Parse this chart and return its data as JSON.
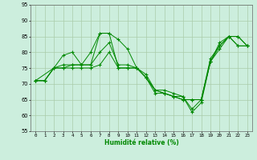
{
  "xlabel": "Humidité relative (%)",
  "xlim": [
    -0.5,
    23.5
  ],
  "ylim": [
    55,
    95
  ],
  "xticks": [
    0,
    1,
    2,
    3,
    4,
    5,
    6,
    7,
    8,
    9,
    10,
    11,
    12,
    13,
    14,
    15,
    16,
    17,
    18,
    19,
    20,
    21,
    22,
    23
  ],
  "yticks": [
    55,
    60,
    65,
    70,
    75,
    80,
    85,
    90,
    95
  ],
  "bg_color": "#cceedd",
  "grid_color": "#aaccaa",
  "line_color": "#008800",
  "lines": [
    {
      "x": [
        0,
        1,
        2,
        3,
        4,
        5,
        6,
        7,
        8,
        9,
        10,
        11,
        12,
        13,
        14,
        15,
        16,
        17,
        18,
        19,
        20,
        21,
        22,
        23
      ],
      "y": [
        71,
        71,
        75,
        75,
        76,
        76,
        80,
        86,
        86,
        84,
        81,
        75,
        73,
        68,
        68,
        67,
        66,
        62,
        65,
        77,
        83,
        85,
        85,
        82
      ]
    },
    {
      "x": [
        0,
        2,
        3,
        4,
        5,
        6,
        7,
        8,
        9,
        10,
        11,
        12,
        13,
        14,
        15,
        16,
        17,
        18,
        19,
        20,
        21,
        22,
        23
      ],
      "y": [
        71,
        75,
        79,
        80,
        76,
        76,
        86,
        86,
        75,
        75,
        75,
        72,
        68,
        67,
        66,
        66,
        61,
        64,
        77,
        82,
        85,
        85,
        82
      ]
    },
    {
      "x": [
        0,
        1,
        2,
        3,
        4,
        5,
        6,
        7,
        8,
        9,
        10,
        11,
        12,
        13,
        14,
        15,
        16,
        17,
        18,
        19,
        20,
        21,
        22,
        23
      ],
      "y": [
        71,
        71,
        75,
        76,
        76,
        76,
        76,
        80,
        83,
        76,
        76,
        75,
        72,
        68,
        67,
        66,
        65,
        65,
        65,
        78,
        82,
        85,
        82,
        82
      ]
    },
    {
      "x": [
        0,
        1,
        2,
        3,
        4,
        5,
        6,
        7,
        8,
        9,
        10,
        11,
        12,
        13,
        14,
        15,
        16,
        17,
        18,
        19,
        20,
        21,
        22,
        23
      ],
      "y": [
        71,
        71,
        75,
        75,
        75,
        75,
        75,
        76,
        80,
        75,
        75,
        75,
        72,
        67,
        67,
        66,
        65,
        65,
        65,
        77,
        81,
        85,
        82,
        82
      ]
    }
  ]
}
